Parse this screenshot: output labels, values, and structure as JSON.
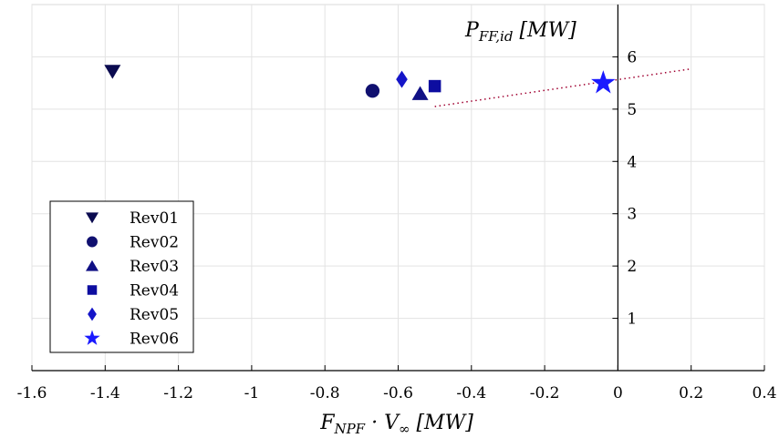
{
  "chart_data": {
    "type": "scatter",
    "xlabel": "F_{NPF} · V_∞ [MW]",
    "ylabel": "P_{FF,id} [MW]",
    "xlim": [
      -1.6,
      0.4
    ],
    "ylim": [
      0,
      7
    ],
    "x_ticks": [
      -1.6,
      -1.4,
      -1.2,
      -1,
      -0.8,
      -0.6,
      -0.4,
      -0.2,
      0,
      0.2,
      0.4
    ],
    "y_ticks": [
      1,
      2,
      3,
      4,
      5,
      6
    ],
    "grid": true,
    "legend_position": "bottom-left",
    "series": [
      {
        "name": "Rev01",
        "marker": "triangle-down",
        "color": "#0b0b50",
        "points": [
          {
            "x": -1.38,
            "y": 5.72
          }
        ]
      },
      {
        "name": "Rev02",
        "marker": "circle",
        "color": "#101070",
        "points": [
          {
            "x": -0.67,
            "y": 5.35
          }
        ]
      },
      {
        "name": "Rev03",
        "marker": "triangle-up",
        "color": "#101085",
        "points": [
          {
            "x": -0.54,
            "y": 5.3
          }
        ]
      },
      {
        "name": "Rev04",
        "marker": "square",
        "color": "#0d0da0",
        "points": [
          {
            "x": -0.5,
            "y": 5.44
          }
        ]
      },
      {
        "name": "Rev05",
        "marker": "diamond",
        "color": "#1515c8",
        "points": [
          {
            "x": -0.59,
            "y": 5.57
          }
        ]
      },
      {
        "name": "Rev06",
        "marker": "star",
        "color": "#1a1aff",
        "points": [
          {
            "x": -0.04,
            "y": 5.5
          }
        ]
      }
    ],
    "trend_line": {
      "style": "dotted",
      "color": "#a00030",
      "x": [
        -0.5,
        0.2
      ],
      "y": [
        5.05,
        5.77
      ]
    }
  }
}
